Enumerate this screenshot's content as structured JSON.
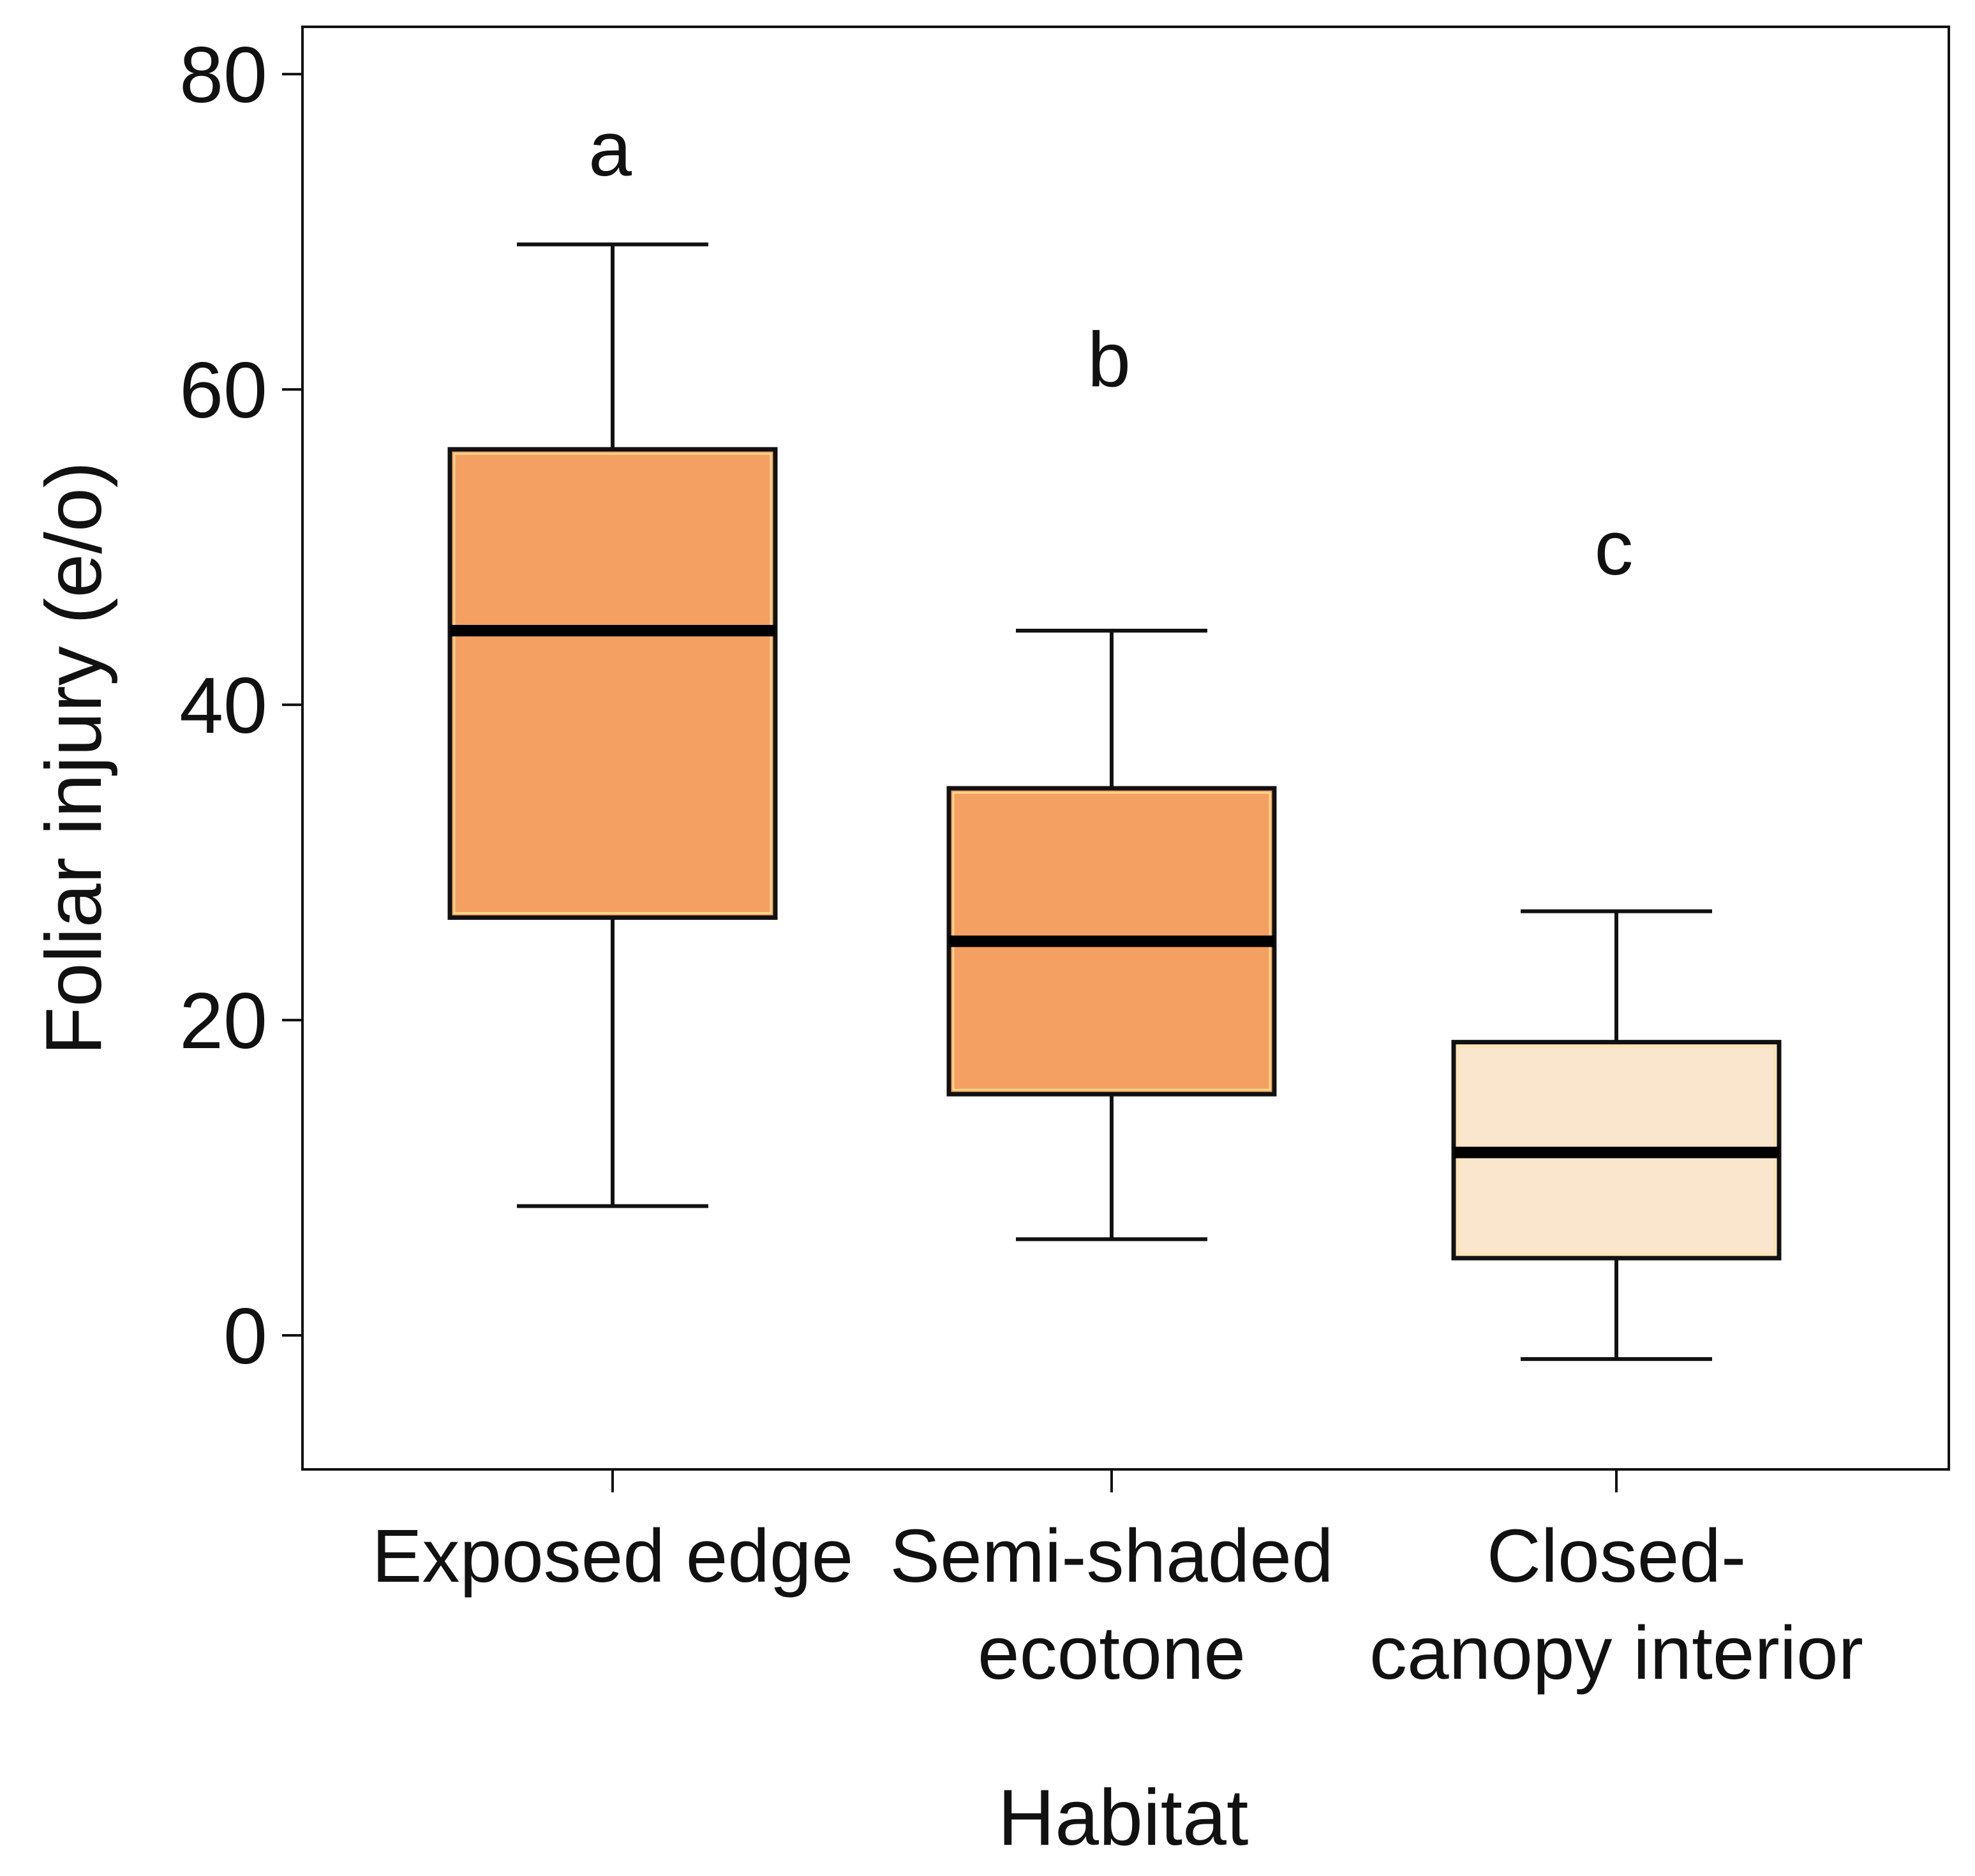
{
  "chart_data": {
    "type": "box",
    "title": "",
    "xlabel": "Habitat",
    "ylabel": "Foliar injury (e/o)",
    "ylim": [
      -8.5,
      83
    ],
    "yticks": [
      0,
      20,
      40,
      60,
      80
    ],
    "grid": false,
    "legend": "none",
    "categories": [
      {
        "label_lines": [
          "Exposed edge"
        ],
        "whisker_low": 8.2,
        "q1": 26.5,
        "median": 44.7,
        "q3": 56.2,
        "whisker_high": 69.2,
        "letter": "a",
        "color": "#F4A062"
      },
      {
        "label_lines": [
          "Semi-shaded",
          "ecotone"
        ],
        "whisker_low": 6.1,
        "q1": 15.3,
        "median": 25.0,
        "q3": 34.7,
        "whisker_high": 44.7,
        "letter": "b",
        "color": "#F4A062"
      },
      {
        "label_lines": [
          "Closed-",
          "canopy interior"
        ],
        "whisker_low": -1.5,
        "q1": 4.9,
        "median": 11.6,
        "q3": 18.6,
        "whisker_high": 26.9,
        "letter": "c",
        "color": "#FAE6CC"
      }
    ]
  }
}
